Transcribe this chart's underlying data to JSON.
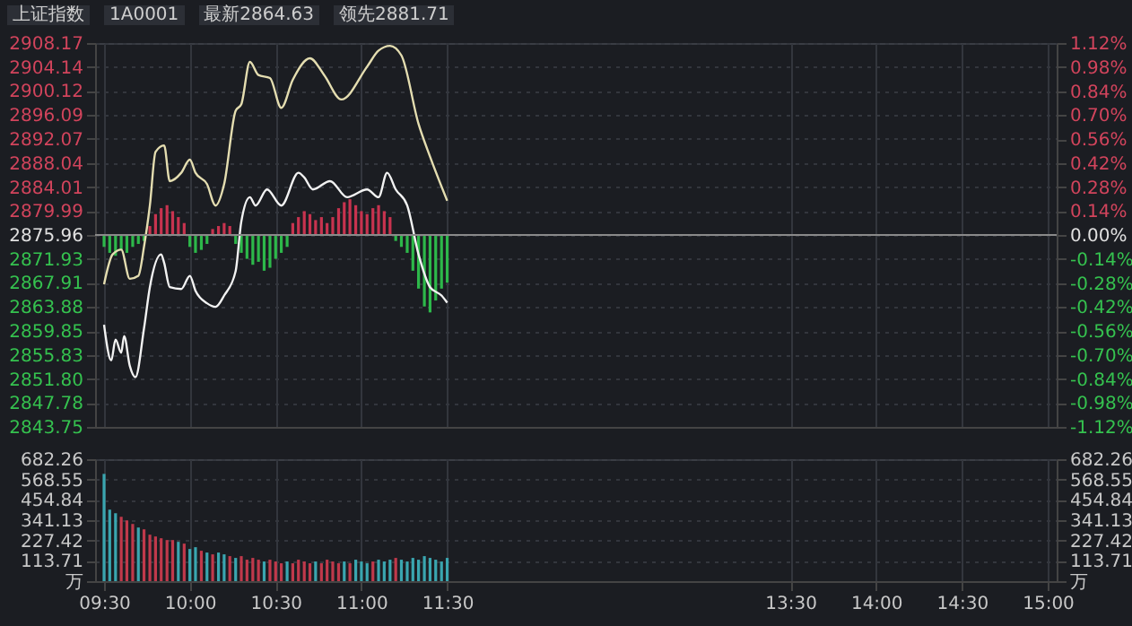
{
  "chart_data": [
    {
      "type": "line",
      "title": "上证指数",
      "annotations": [
        "1A0001",
        "最新2864.63",
        "领先2881.71"
      ],
      "xlim": [
        9.5,
        15
      ],
      "xticks": [
        {
          "value": 9.5,
          "label": null
        },
        {
          "value": 10,
          "label": null
        },
        {
          "value": 10.5,
          "label": null
        },
        {
          "value": 11,
          "label": null
        },
        {
          "value": 11.5,
          "label": null
        },
        {
          "value": 13.5,
          "label": null
        },
        {
          "value": 14,
          "label": null
        },
        {
          "value": 14.5,
          "label": null
        },
        {
          "value": 15,
          "label": null
        }
      ],
      "ylim": [
        2843.75,
        2908.17
      ],
      "yticks": [
        2843.75,
        2847.78,
        {
          "value": 2851.8,
          "label": "2851.80"
        },
        2855.83,
        2859.85,
        2863.88,
        2867.91,
        2871.93,
        2875.96,
        2879.99,
        2884.01,
        2888.04,
        2892.07,
        2896.09,
        2900.12,
        2904.14,
        2908.17
      ],
      "y2lim": [
        -1.12,
        1.12
      ],
      "y2ticks": [
        {
          "value": -1.12,
          "label": "-1.12%"
        },
        {
          "value": -0.98,
          "label": "-0.98%"
        },
        {
          "value": -0.84,
          "label": "-0.84%"
        },
        {
          "value": -0.7,
          "label": "-0.70%"
        },
        {
          "value": -0.56,
          "label": "-0.56%"
        },
        {
          "value": -0.42,
          "label": "-0.42%"
        },
        {
          "value": -0.28,
          "label": "-0.28%"
        },
        {
          "value": -0.14,
          "label": "-0.14%"
        },
        {
          "value": 0,
          "label": "0.00%"
        },
        {
          "value": 0.14,
          "label": "0.14%"
        },
        {
          "value": 0.28,
          "label": "0.28%"
        },
        {
          "value": 0.42,
          "label": "0.42%"
        },
        {
          "value": 0.56,
          "label": "0.56%"
        },
        {
          "value": 0.7,
          "label": "0.70%"
        },
        {
          "value": 0.84,
          "label": "0.84%"
        },
        {
          "value": 0.98,
          "label": "0.98%"
        },
        {
          "value": 1.12,
          "label": "1.12%"
        }
      ],
      "tick_labels": "y",
      "grid": true,
      "ref_lines": [
        {
          "axis": "y",
          "value": 2875.96,
          "color": "#8a8a8a"
        }
      ],
      "series": [
        {
          "type": "bar",
          "x": [
            9.5,
            9.533,
            9.567,
            9.6,
            9.633,
            9.667,
            9.7,
            9.733,
            9.767,
            9.8,
            9.833,
            9.867,
            9.9,
            9.933,
            9.967,
            10,
            10.033,
            10.067,
            10.1,
            10.133,
            10.167,
            10.2,
            10.233,
            10.267,
            10.3,
            10.333,
            10.367,
            10.4,
            10.433,
            10.467,
            10.5,
            10.533,
            10.567,
            10.6,
            10.633,
            10.667,
            10.7,
            10.733,
            10.767,
            10.8,
            10.833,
            10.867,
            10.9,
            10.933,
            10.967,
            11,
            11.033,
            11.067,
            11.1,
            11.133,
            11.167,
            11.2,
            11.233,
            11.267,
            11.3,
            11.333,
            11.367,
            11.4,
            11.433,
            11.467,
            11.5
          ],
          "base": [
            2875.96,
            2875.96,
            2875.96,
            2875.96,
            2875.96,
            2875.96,
            2875.96,
            2875.96,
            2875.96,
            2875.96,
            2875.96,
            2875.96,
            2875.96,
            2875.96,
            2875.96,
            2875.96,
            2875.96,
            2875.96,
            2875.96,
            2875.96,
            2875.96,
            2875.96,
            2875.96,
            2875.96,
            2875.96,
            2875.96,
            2875.96,
            2875.96,
            2875.96,
            2875.96,
            2875.96,
            2875.96,
            2875.96,
            2875.96,
            2875.96,
            2875.96,
            2875.96,
            2875.96,
            2875.96,
            2875.96,
            2875.96,
            2875.96,
            2875.96,
            2875.96,
            2875.96,
            2875.96,
            2875.96,
            2875.96,
            2875.96,
            2875.96,
            2875.96,
            2875.96,
            2875.96,
            2875.96,
            2875.96,
            2875.96,
            2875.96,
            2875.96,
            2875.96,
            2875.96,
            2875.96
          ],
          "values": [
            -2,
            -3,
            -3.5,
            -2.5,
            -3,
            -2,
            -1.5,
            -1,
            1.5,
            3.5,
            4.5,
            5,
            4,
            3,
            2,
            -2,
            -3,
            -2.5,
            -1.5,
            1,
            1.5,
            2,
            1.5,
            -1.5,
            -3,
            -4,
            -5,
            -4.5,
            -6,
            -5.5,
            -4,
            -3,
            -2,
            2,
            3,
            4,
            3.5,
            2.5,
            3,
            2,
            3,
            4.5,
            5.5,
            6,
            5,
            4,
            3.5,
            4.5,
            5,
            4,
            3,
            -1,
            -2,
            -3,
            -6,
            -9,
            -12,
            -13,
            -11,
            -9,
            -8
          ],
          "colors": [
            "#2db84a",
            "#2db84a",
            "#2db84a",
            "#2db84a",
            "#2db84a",
            "#2db84a",
            "#2db84a",
            "#2db84a",
            "#c8334f",
            "#c8334f",
            "#c8334f",
            "#c8334f",
            "#c8334f",
            "#c8334f",
            "#c8334f",
            "#2db84a",
            "#2db84a",
            "#2db84a",
            "#2db84a",
            "#c8334f",
            "#c8334f",
            "#c8334f",
            "#c8334f",
            "#2db84a",
            "#2db84a",
            "#2db84a",
            "#2db84a",
            "#2db84a",
            "#2db84a",
            "#2db84a",
            "#2db84a",
            "#2db84a",
            "#2db84a",
            "#c8334f",
            "#c8334f",
            "#c8334f",
            "#c8334f",
            "#c8334f",
            "#c8334f",
            "#c8334f",
            "#c8334f",
            "#c8334f",
            "#c8334f",
            "#c8334f",
            "#c8334f",
            "#c8334f",
            "#c8334f",
            "#c8334f",
            "#c8334f",
            "#c8334f",
            "#c8334f",
            "#2db84a",
            "#2db84a",
            "#2db84a",
            "#2db84a",
            "#2db84a",
            "#2db84a",
            "#2db84a",
            "#2db84a",
            "#2db84a",
            "#2db84a"
          ]
        },
        {
          "type": "line",
          "color": "#e4ddb0",
          "x": [
            9.5,
            9.55,
            9.6,
            9.65,
            9.7,
            9.733,
            9.767,
            9.8,
            9.85,
            9.883,
            9.95,
            10,
            10.033,
            10.1,
            10.15,
            10.2,
            10.267,
            10.3,
            10.35,
            10.4,
            10.467,
            10.533,
            10.6,
            10.7,
            10.783,
            10.883,
            11.033,
            11.1,
            11.167,
            11.233,
            11.333,
            11.4,
            11.5
          ],
          "values": [
            2867.7,
            2872.7,
            2873.5,
            2868.6,
            2869.1,
            2874.0,
            2880.9,
            2889.9,
            2891.0,
            2885.0,
            2886.4,
            2888.6,
            2886.4,
            2884.5,
            2880.9,
            2884.5,
            2896.8,
            2897.9,
            2905.0,
            2902.8,
            2902.3,
            2897.3,
            2902.0,
            2905.6,
            2902.8,
            2898.7,
            2904.2,
            2906.9,
            2907.7,
            2906.1,
            2894.6,
            2889.1,
            2881.7
          ]
        },
        {
          "type": "line",
          "color": "#f2f2f2",
          "x": [
            9.5,
            9.542,
            9.567,
            9.6,
            9.617,
            9.65,
            9.683,
            9.733,
            9.767,
            9.833,
            9.85,
            9.883,
            9.95,
            10,
            10.033,
            10.1,
            10.15,
            10.2,
            10.267,
            10.3,
            10.35,
            10.383,
            10.45,
            10.533,
            10.633,
            10.667,
            10.717,
            10.817,
            10.917,
            11.033,
            11.1,
            11.15,
            11.2,
            11.267,
            11.333,
            11.4,
            11.467,
            11.5
          ],
          "values": [
            2860.9,
            2854.9,
            2858.4,
            2856.2,
            2859.0,
            2854.0,
            2852.1,
            2860.3,
            2867.2,
            2872.7,
            2871.3,
            2867.2,
            2866.9,
            2869.1,
            2866.6,
            2864.5,
            2863.9,
            2865.8,
            2869.9,
            2878.2,
            2882.3,
            2880.9,
            2883.6,
            2880.9,
            2886.4,
            2885.6,
            2883.6,
            2885.0,
            2882.3,
            2883.6,
            2882.3,
            2886.4,
            2883.6,
            2880.9,
            2872.7,
            2867.2,
            2865.8,
            2864.6
          ]
        }
      ]
    },
    {
      "type": "bar",
      "xlim": [
        9.5,
        15
      ],
      "xticks": [
        {
          "value": 9.5,
          "label": "09:30"
        },
        {
          "value": 10,
          "label": "10:00"
        },
        {
          "value": 10.5,
          "label": "10:30"
        },
        {
          "value": 11,
          "label": "11:00"
        },
        {
          "value": 11.5,
          "label": "11:30"
        },
        {
          "value": 13.5,
          "label": "13:30"
        },
        {
          "value": 14,
          "label": "14:00"
        },
        {
          "value": 14.5,
          "label": "14:30"
        },
        {
          "value": 15,
          "label": "15:00"
        }
      ],
      "ylim": [
        0,
        682.26
      ],
      "yticks": [
        {
          "value": 0,
          "label": "万"
        },
        113.71,
        227.42,
        341.13,
        454.84,
        568.55,
        682.26
      ],
      "y2lim": [
        0,
        682.26
      ],
      "y2ticks": [
        {
          "value": 0,
          "label": "万"
        },
        113.71,
        227.42,
        341.13,
        454.84,
        568.55,
        682.26
      ],
      "grid": true,
      "x": [
        9.5,
        9.533,
        9.567,
        9.6,
        9.633,
        9.667,
        9.7,
        9.733,
        9.767,
        9.8,
        9.833,
        9.867,
        9.9,
        9.933,
        9.967,
        10,
        10.033,
        10.067,
        10.1,
        10.133,
        10.167,
        10.2,
        10.233,
        10.267,
        10.3,
        10.333,
        10.367,
        10.4,
        10.433,
        10.467,
        10.5,
        10.533,
        10.567,
        10.6,
        10.633,
        10.667,
        10.7,
        10.733,
        10.767,
        10.8,
        10.833,
        10.867,
        10.9,
        10.933,
        10.967,
        11,
        11.033,
        11.067,
        11.1,
        11.133,
        11.167,
        11.2,
        11.233,
        11.267,
        11.3,
        11.333,
        11.367,
        11.4,
        11.433,
        11.467,
        11.5
      ],
      "values": [
        600,
        400,
        380,
        360,
        340,
        320,
        300,
        290,
        260,
        250,
        240,
        230,
        230,
        220,
        210,
        180,
        190,
        170,
        160,
        150,
        160,
        150,
        140,
        130,
        140,
        120,
        130,
        120,
        110,
        120,
        110,
        100,
        110,
        100,
        120,
        110,
        100,
        110,
        100,
        120,
        110,
        100,
        110,
        100,
        120,
        110,
        100,
        110,
        120,
        110,
        120,
        130,
        120,
        110,
        130,
        120,
        140,
        130,
        120,
        110,
        130
      ],
      "colors": [
        "#3aa6b0",
        "#3aa6b0",
        "#3aa6b0",
        "#c0394b",
        "#c0394b",
        "#c0394b",
        "#3aa6b0",
        "#c0394b",
        "#c0394b",
        "#c0394b",
        "#c0394b",
        "#c0394b",
        "#c0394b",
        "#3aa6b0",
        "#c0394b",
        "#3aa6b0",
        "#3aa6b0",
        "#c0394b",
        "#3aa6b0",
        "#c0394b",
        "#3aa6b0",
        "#3aa6b0",
        "#c0394b",
        "#3aa6b0",
        "#c0394b",
        "#c0394b",
        "#c0394b",
        "#c0394b",
        "#3aa6b0",
        "#c0394b",
        "#c0394b",
        "#c0394b",
        "#3aa6b0",
        "#c0394b",
        "#c0394b",
        "#c0394b",
        "#c0394b",
        "#3aa6b0",
        "#c0394b",
        "#c0394b",
        "#c0394b",
        "#c0394b",
        "#3aa6b0",
        "#c0394b",
        "#3aa6b0",
        "#3aa6b0",
        "#3aa6b0",
        "#c0394b",
        "#3aa6b0",
        "#3aa6b0",
        "#3aa6b0",
        "#c0394b",
        "#3aa6b0",
        "#3aa6b0",
        "#3aa6b0",
        "#3aa6b0",
        "#3aa6b0",
        "#3aa6b0",
        "#3aa6b0",
        "#3aa6b0",
        "#3aa6b0"
      ]
    }
  ]
}
